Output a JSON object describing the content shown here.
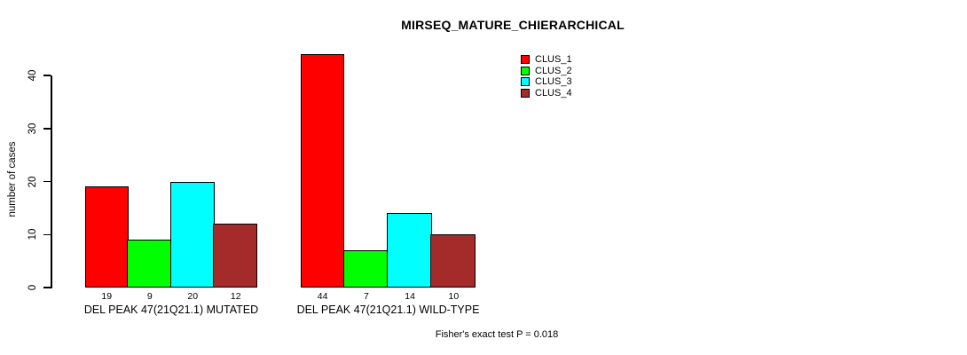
{
  "chart": {
    "title": "MIRSEQ_MATURE_CHIERARCHICAL",
    "ylabel": "number of cases",
    "footer": "Fisher's exact test P = 0.018"
  },
  "chart_data": {
    "type": "bar",
    "title": "MIRSEQ_MATURE_CHIERARCHICAL",
    "xlabel": "",
    "ylabel": "number of cases",
    "ylim": [
      0,
      44
    ],
    "yticks": [
      0,
      10,
      20,
      30,
      40
    ],
    "grid": false,
    "legend_position": "top-right",
    "categories": [
      "DEL PEAK 47(21Q21.1) MUTATED",
      "DEL PEAK 47(21Q21.1) WILD-TYPE"
    ],
    "series": [
      {
        "name": "CLUS_1",
        "color": "#FF0000",
        "values": [
          19,
          44
        ]
      },
      {
        "name": "CLUS_2",
        "color": "#00FF00",
        "values": [
          9,
          7
        ]
      },
      {
        "name": "CLUS_3",
        "color": "#00FFFF",
        "values": [
          20,
          14
        ]
      },
      {
        "name": "CLUS_4",
        "color": "#A52A2A",
        "values": [
          12,
          10
        ]
      }
    ],
    "bar_value_labels": [
      [
        19,
        9,
        20,
        12
      ],
      [
        44,
        7,
        14,
        10
      ]
    ],
    "annotation": "Fisher's exact test P = 0.018"
  }
}
